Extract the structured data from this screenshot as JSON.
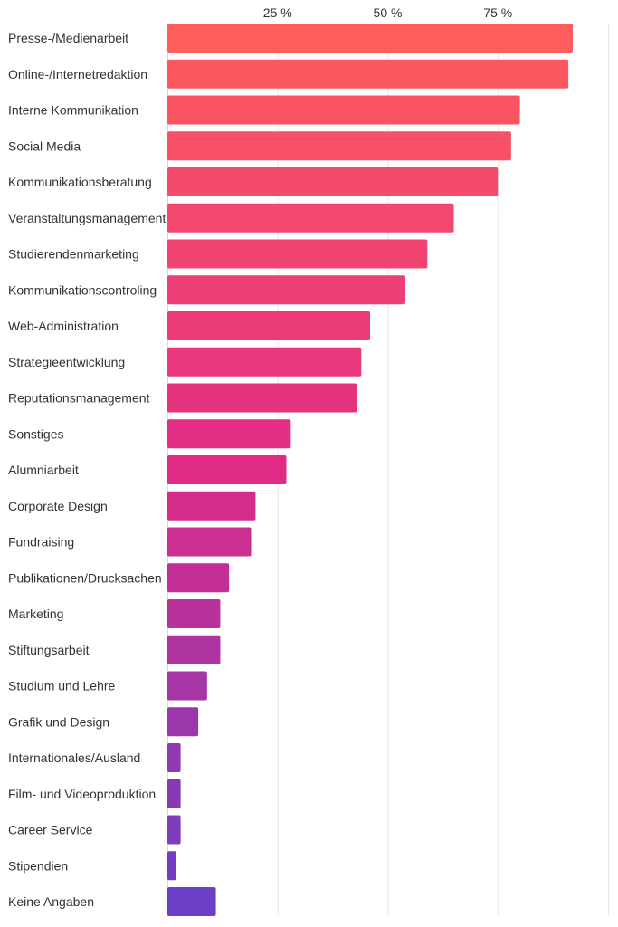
{
  "chart_data": {
    "type": "bar",
    "orientation": "horizontal",
    "title": "",
    "xlabel": "",
    "ylabel": "",
    "xlim": [
      0,
      100
    ],
    "x_ticks": [
      {
        "value": 25,
        "label": "25 %"
      },
      {
        "value": 50,
        "label": "50 %"
      },
      {
        "value": 75,
        "label": "75 %"
      }
    ],
    "x_tick_position": "top",
    "grid": true,
    "legend": "none",
    "color_gradient": [
      "#ff5c5c",
      "#e02a86",
      "#6b3fc6"
    ],
    "categories": [
      "Presse-/Medienarbeit",
      "Online-/Internetredaktion",
      "Interne Kommunikation",
      "Social Media",
      "Kommunikationsberatung",
      "Veranstaltungsmanagement",
      "Studierendenmarketing",
      "Kommunikationscontroling",
      "Web-Administration",
      "Strategieentwicklung",
      "Reputationsmanagement",
      "Sonstiges",
      "Alumniarbeit",
      "Corporate Design",
      "Fundraising",
      "Publikationen/Drucksachen",
      "Marketing",
      "Stiftungsarbeit",
      "Studium und Lehre",
      "Grafik und Design",
      "Internationales/Ausland",
      "Film- und Videoproduktion",
      "Career Service",
      "Stipendien",
      "Keine Angaben"
    ],
    "values": [
      92,
      91,
      80,
      78,
      75,
      65,
      59,
      54,
      46,
      44,
      43,
      28,
      27,
      20,
      19,
      14,
      12,
      12,
      9,
      7,
      3,
      3,
      3,
      2,
      11
    ]
  }
}
